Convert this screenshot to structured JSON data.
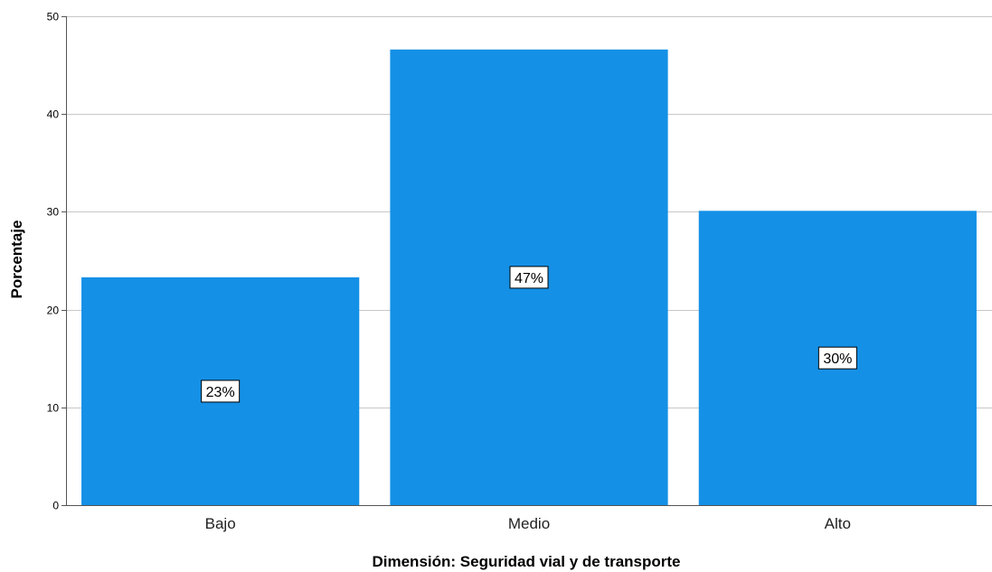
{
  "chart_data": {
    "type": "bar",
    "categories": [
      "Bajo",
      "Medio",
      "Alto"
    ],
    "values": [
      23.3,
      46.6,
      30.1
    ],
    "data_labels": [
      "23%",
      "47%",
      "30%"
    ],
    "title": "",
    "xlabel": "Dimensión: Seguridad vial y de transporte",
    "ylabel": "Porcentaje",
    "ylim": [
      0,
      50
    ],
    "yticks": [
      0,
      10,
      20,
      30,
      40,
      50
    ],
    "grid": true,
    "bar_color": "#1490e6",
    "grid_color": "#c8c8c8",
    "axis_color": "#555555"
  }
}
